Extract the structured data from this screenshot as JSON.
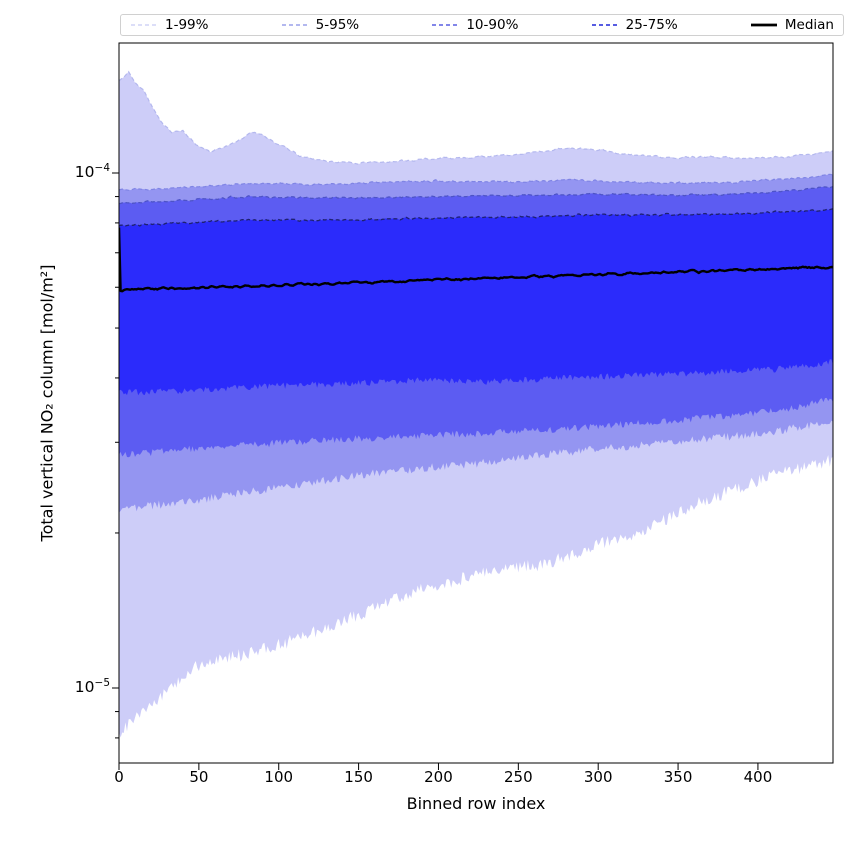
{
  "axes": {
    "xlabel": "Binned row index",
    "ylabel": "Total vertical NO₂ column [mol/m²]",
    "x_ticks": [
      0,
      50,
      100,
      150,
      200,
      250,
      300,
      350,
      400
    ],
    "y_major_ticks": [
      {
        "base": "10",
        "exp": "−4",
        "value": 0.0001
      },
      {
        "base": "10",
        "exp": "−5",
        "value": 1e-05
      }
    ],
    "y_minor_tick_values": [
      9e-05,
      8e-05,
      7e-05,
      6e-05,
      5e-05,
      4e-05,
      3e-05,
      2e-05,
      9e-06,
      8e-06
    ],
    "y_scale": "log"
  },
  "legend": {
    "items": [
      {
        "label": "1-99%",
        "color": "#c6caf3",
        "style": "dashed",
        "width": 1.3
      },
      {
        "label": "5-95%",
        "color": "#9aa0ea",
        "style": "dashed",
        "width": 1.4
      },
      {
        "label": "10-90%",
        "color": "#7076e6",
        "style": "dashed",
        "width": 1.7
      },
      {
        "label": "25-75%",
        "color": "#575ce2",
        "style": "dashed",
        "width": 2.0
      },
      {
        "label": "Median",
        "color": "#000000",
        "style": "solid",
        "width": 2.8
      }
    ]
  },
  "colors": {
    "fill_1_99": "#cdcdf8",
    "fill_5_95": "#9495f1",
    "fill_10_90": "#5c5cf2",
    "fill_25_75": "#2b2bfb",
    "line_p99": "#b4b8ee",
    "line_p95": "#7f84e4",
    "line_p90": "#4d53c6",
    "line_p75": "#1e2170",
    "line_median": "#000000",
    "frame": "#000000"
  },
  "chart_data": {
    "type": "area",
    "subtype": "percentile-fan",
    "title": "",
    "xlabel": "Binned row index",
    "ylabel": "Total vertical NO₂ column [mol/m²]",
    "x_units": "bin index",
    "x_range": [
      0,
      447
    ],
    "y_range": [
      7.15e-06,
      0.000179
    ],
    "y_scale": "log",
    "grid": false,
    "legend_position": "top",
    "series": [
      {
        "name": "p99",
        "percentile": 99,
        "points": [
          [
            0,
            0.000151
          ],
          [
            6,
            0.000157
          ],
          [
            10,
            0.00015
          ],
          [
            15,
            0.000145
          ],
          [
            21,
            0.000134
          ],
          [
            28,
            0.000124
          ],
          [
            33,
            0.00012
          ],
          [
            40,
            0.000121
          ],
          [
            45,
            0.000116
          ],
          [
            49,
            0.000113
          ],
          [
            57,
            0.00011
          ],
          [
            65,
            0.000112
          ],
          [
            74,
            0.000115
          ],
          [
            82,
            0.00012
          ],
          [
            88,
            0.000119
          ],
          [
            97,
            0.000115
          ],
          [
            105,
            0.000112
          ],
          [
            113,
            0.000108
          ],
          [
            124,
            0.000106
          ],
          [
            136,
            0.000105
          ],
          [
            150,
            0.0001046
          ],
          [
            170,
            0.000105
          ],
          [
            200,
            0.0001068
          ],
          [
            230,
            0.0001075
          ],
          [
            255,
            0.000109
          ],
          [
            282,
            0.000112
          ],
          [
            300,
            0.0001108
          ],
          [
            320,
            0.0001085
          ],
          [
            345,
            0.000107
          ],
          [
            370,
            0.0001072
          ],
          [
            395,
            0.0001068
          ],
          [
            420,
            0.0001075
          ],
          [
            447,
            0.00011
          ]
        ]
      },
      {
        "name": "p95",
        "percentile": 95,
        "points": [
          [
            0,
            9.27e-05
          ],
          [
            30,
            9.3e-05
          ],
          [
            60,
            9.45e-05
          ],
          [
            90,
            9.55e-05
          ],
          [
            120,
            9.5e-05
          ],
          [
            150,
            9.55e-05
          ],
          [
            200,
            9.65e-05
          ],
          [
            250,
            9.6e-05
          ],
          [
            282,
            9.7e-05
          ],
          [
            320,
            9.6e-05
          ],
          [
            360,
            9.55e-05
          ],
          [
            400,
            9.65e-05
          ],
          [
            447,
            9.9e-05
          ]
        ]
      },
      {
        "name": "p90",
        "percentile": 90,
        "points": [
          [
            0,
            8.74e-05
          ],
          [
            40,
            8.85e-05
          ],
          [
            80,
            9e-05
          ],
          [
            120,
            8.95e-05
          ],
          [
            160,
            8.95e-05
          ],
          [
            200,
            9e-05
          ],
          [
            250,
            9.05e-05
          ],
          [
            300,
            9.1e-05
          ],
          [
            350,
            9.05e-05
          ],
          [
            400,
            9.15e-05
          ],
          [
            447,
            9.4e-05
          ]
        ]
      },
      {
        "name": "p75",
        "percentile": 75,
        "points": [
          [
            0,
            7.9e-05
          ],
          [
            40,
            8e-05
          ],
          [
            80,
            8.1e-05
          ],
          [
            120,
            8.1e-05
          ],
          [
            160,
            8.12e-05
          ],
          [
            200,
            8.18e-05
          ],
          [
            250,
            8.22e-05
          ],
          [
            300,
            8.3e-05
          ],
          [
            350,
            8.3e-05
          ],
          [
            400,
            8.35e-05
          ],
          [
            447,
            8.5e-05
          ]
        ]
      },
      {
        "name": "median",
        "percentile": 50,
        "points": [
          [
            0,
            7.85e-05
          ],
          [
            1,
            5.92e-05
          ],
          [
            20,
            5.95e-05
          ],
          [
            60,
            6e-05
          ],
          [
            100,
            6.05e-05
          ],
          [
            150,
            6.13e-05
          ],
          [
            200,
            6.2e-05
          ],
          [
            250,
            6.28e-05
          ],
          [
            300,
            6.35e-05
          ],
          [
            350,
            6.42e-05
          ],
          [
            400,
            6.5e-05
          ],
          [
            447,
            6.57e-05
          ]
        ]
      },
      {
        "name": "p25",
        "percentile": 25,
        "points": [
          [
            0,
            3.74e-05
          ],
          [
            50,
            3.79e-05
          ],
          [
            100,
            3.86e-05
          ],
          [
            150,
            3.91e-05
          ],
          [
            188,
            3.96e-05
          ],
          [
            225,
            3.93e-05
          ],
          [
            280,
            4e-05
          ],
          [
            363,
            4.09e-05
          ],
          [
            410,
            4.15e-05
          ],
          [
            447,
            4.3e-05
          ]
        ]
      },
      {
        "name": "p10",
        "percentile": 10,
        "points": [
          [
            0,
            2.83e-05
          ],
          [
            50,
            2.92e-05
          ],
          [
            100,
            2.99e-05
          ],
          [
            150,
            3.05e-05
          ],
          [
            188,
            3.09e-05
          ],
          [
            225,
            3.12e-05
          ],
          [
            280,
            3.19e-05
          ],
          [
            363,
            3.34e-05
          ],
          [
            410,
            3.45e-05
          ],
          [
            447,
            3.63e-05
          ]
        ]
      },
      {
        "name": "p5",
        "percentile": 5,
        "points": [
          [
            0,
            2.22e-05
          ],
          [
            50,
            2.32e-05
          ],
          [
            100,
            2.45e-05
          ],
          [
            150,
            2.59e-05
          ],
          [
            188,
            2.67e-05
          ],
          [
            225,
            2.73e-05
          ],
          [
            280,
            2.87e-05
          ],
          [
            363,
            3.03e-05
          ],
          [
            410,
            3.15e-05
          ],
          [
            447,
            3.3e-05
          ]
        ]
      },
      {
        "name": "p1",
        "percentile": 1,
        "points": [
          [
            0,
            8.1e-06
          ],
          [
            16,
            9.06e-06
          ],
          [
            30,
            9.9e-06
          ],
          [
            50,
            1.11e-05
          ],
          [
            82,
            1.17e-05
          ],
          [
            103,
            1.22e-05
          ],
          [
            145,
            1.37e-05
          ],
          [
            188,
            1.55e-05
          ],
          [
            228,
            1.67e-05
          ],
          [
            270,
            1.75e-05
          ],
          [
            300,
            1.9e-05
          ],
          [
            330,
            2.03e-05
          ],
          [
            363,
            2.29e-05
          ],
          [
            400,
            2.53e-05
          ],
          [
            430,
            2.69e-05
          ],
          [
            447,
            2.77e-05
          ]
        ]
      }
    ],
    "bands": [
      {
        "label": "1-99%",
        "upper": "p99",
        "lower": "p1"
      },
      {
        "label": "5-95%",
        "upper": "p95",
        "lower": "p5"
      },
      {
        "label": "10-90%",
        "upper": "p90",
        "lower": "p10"
      },
      {
        "label": "25-75%",
        "upper": "p75",
        "lower": "p25"
      }
    ]
  }
}
